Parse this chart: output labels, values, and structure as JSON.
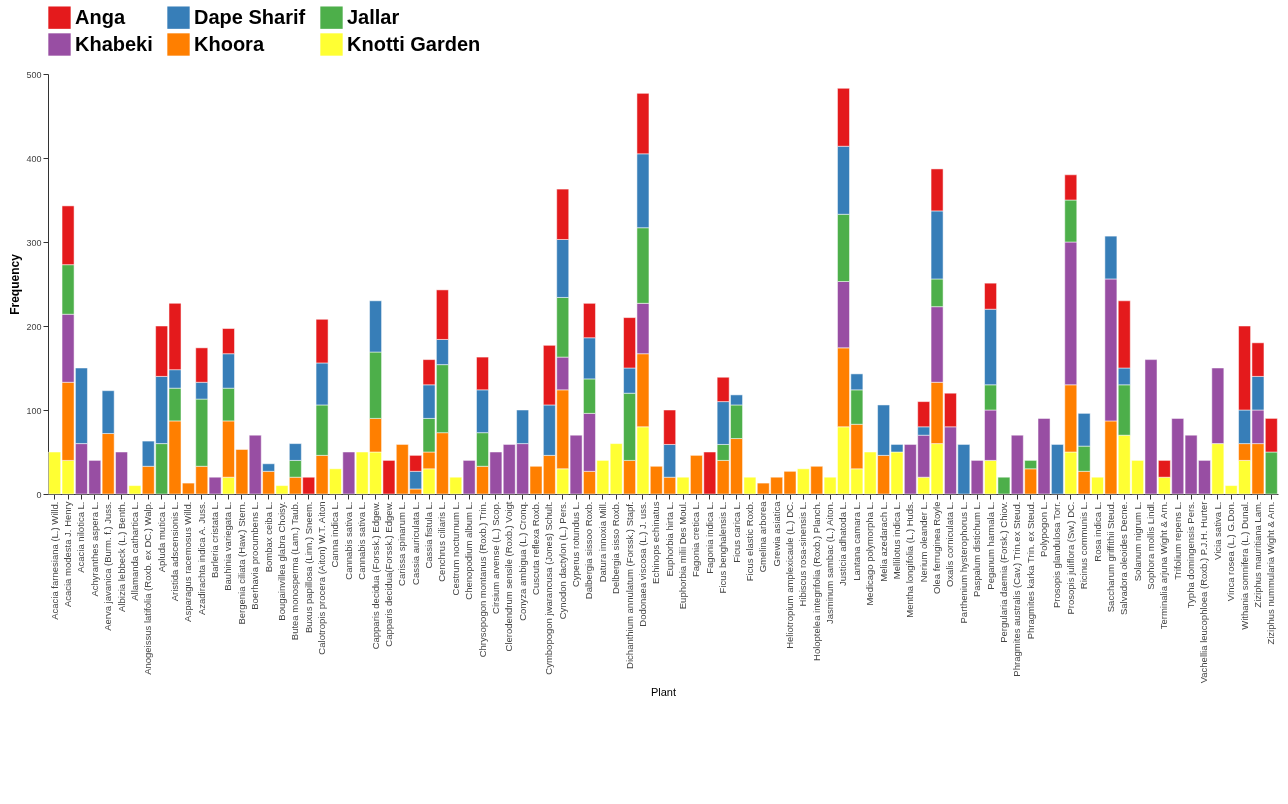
{
  "chart_data": {
    "type": "bar",
    "stacked": true,
    "xlabel": "Plant",
    "ylabel": "Frequency",
    "ylim": [
      0,
      500
    ],
    "yticks": [
      0,
      100,
      200,
      300,
      400,
      500
    ],
    "legend": "top",
    "categories": [
      "Acacia farnesiana (L.) Willd.",
      "Acacia modesta J. Henry",
      "Acacia nilotica L.",
      "Achyranthes aspera L.",
      "Aerva javanica (Burm. f.) Juss.",
      "Albizia lebbeck (L.) Benth.",
      "Allamanda cathartica L.",
      "Anogeissus latifolia (Roxb. ex DC.) Walp.",
      "Apluda mutica L.",
      "Aristida adscensionis L.",
      "Asparagus racemosus Willd.",
      "Azadirachta indica A. Juss.",
      "Barleria cristata L.",
      "Bauhinia variegata L.",
      "Bergenia ciliata (Haw.) Stern.",
      "Boerhavia procumbens L.",
      "Bombax ceiba L.",
      "Bougainvillea glabra Choisy.",
      "Butea monosperma (Lam.) Taub.",
      "Buxus papillosa (Linn.) Sneem.",
      "Calotropis procera (Aiton) W.T. Aiton",
      "Canna indica L.",
      "Cannabis sativa L.",
      "Cannabis sativa L.",
      "Capparis decidua (Forssk.) Edgew.",
      "Capparis decidua(Forssk.) Edgew.",
      "Carissa spinarum L.",
      "Cassia auriculata L.",
      "Cassia fistula L.",
      "Cenchrus ciliaris L.",
      "Cestrum nocturnum L.",
      "Chenopodium album L.",
      "Chrysopogon montanus (Roxb.) Trin.",
      "Cirsium arvense (L.) Scop.",
      "Clerodendrum sensile (Roxb.) Voigt",
      "Conyza ambigua (L.) Cronq.",
      "Cuscuta reflexa Roxb.",
      "Cymbopogon jwarancusa (Jones) Schult.",
      "Cynodon dactylon (L.) Pers.",
      "Cyperus rotundus L.",
      "Dalbergia sissoo Roxb.",
      "Datura innoxia Mill.",
      "Delbergia sisso Roxb.",
      "Dichanthium annulatum (Forssk.) Stapf.",
      "Dodonaea viscosa (L.) J. uss.",
      "Echinops echinatus",
      "Euphorbia hirta L.",
      "Euphorbia milii Des Moul.",
      "Fagonia cretica L.",
      "Fagonia indica L.",
      "Ficus benghalensis L.",
      "Ficus carica L.",
      "Ficus elastic Roxb.",
      "Gmelina arborea",
      "Grewia asiatica",
      "Heliotropium amplexicaule (L.) DC.",
      "Hibiscus rosa-sinensis L.",
      "Holoptelea integrifolia (Roxb.) Planch.",
      "Jasminum sambac (L.) Aiton.",
      "Justicia adhatoda L.",
      "Lantana camara L.",
      "Medicago polymorpha L.",
      "Melia azedarach L.",
      "Mellilotus indica L.",
      "Mentha longifolia (L.) Huds.",
      "Nerium oleander L.",
      "Olea ferruginea Royle",
      "Oxalis corniculata L.",
      "Parthenium hysterophorus L.",
      "Paspalum distichum L.",
      "Peganum harmala L.",
      "Pergularia daemia (Forsk.) Chiov.",
      "Phragmites australis (Cav.) Trin.ex Steud.",
      "Phragmites karka Trin. ex Steud.",
      "Polypogon L.",
      "Prosopis glandulosa Torr.",
      "Prosopis juliflora (Sw.) DC.",
      "Ricinus communis L.",
      "Rosa indica L.",
      "Saccharum griffithii Steud.",
      "Salvadora oleoides Decne.",
      "Solanum nigrum L.",
      "Sophora mollis Lindl.",
      "Terminalia arjuna Wight & Arn.",
      "Trifolium repens L.",
      "Typha domingensis Pers.",
      "Vachellia leucophloea (Roxb.) P.J.H. Hurter",
      "Vicia sativa L.",
      "Vinca rosea (L.) G.Don.",
      "Withania somnifera (L.) Dunal.",
      "Ziziphus mauritiana Lam.",
      "Ziziphus nummularia Wight & Arn."
    ],
    "series": [
      {
        "name": "Knotti Garden",
        "color": "#ffff33",
        "values": [
          50,
          40,
          null,
          null,
          null,
          null,
          10,
          null,
          null,
          null,
          null,
          null,
          null,
          20,
          null,
          null,
          null,
          10,
          null,
          null,
          null,
          30,
          null,
          50,
          50,
          null,
          null,
          null,
          30,
          null,
          20,
          null,
          null,
          null,
          null,
          null,
          null,
          null,
          30,
          null,
          null,
          40,
          60,
          null,
          80,
          null,
          null,
          20,
          null,
          null,
          null,
          null,
          20,
          null,
          null,
          null,
          30,
          null,
          20,
          80,
          30,
          50,
          null,
          50,
          null,
          20,
          60,
          null,
          null,
          null,
          40,
          null,
          null,
          null,
          null,
          null,
          50,
          null,
          20,
          null,
          70,
          40,
          null,
          20,
          null,
          null,
          null,
          60,
          10,
          40,
          null,
          null
        ]
      },
      {
        "name": "Khoora",
        "color": "#ff7f00",
        "values": [
          null,
          93,
          null,
          null,
          72,
          null,
          null,
          33,
          null,
          87,
          13,
          33,
          null,
          67,
          53,
          null,
          27,
          null,
          20,
          null,
          46,
          null,
          null,
          null,
          40,
          null,
          59,
          6,
          20,
          73,
          null,
          null,
          33,
          null,
          null,
          null,
          33,
          46,
          94,
          null,
          27,
          null,
          null,
          40,
          87,
          33,
          20,
          null,
          46,
          null,
          40,
          66,
          null,
          13,
          20,
          27,
          null,
          33,
          null,
          94,
          53,
          null,
          46,
          null,
          null,
          null,
          73,
          null,
          null,
          null,
          null,
          null,
          null,
          30,
          null,
          null,
          80,
          27,
          null,
          87,
          null,
          null,
          null,
          null,
          null,
          null,
          null,
          null,
          null,
          20,
          60,
          null
        ]
      },
      {
        "name": "Khabeki",
        "color": "#984ea3",
        "values": [
          null,
          81,
          60,
          40,
          null,
          50,
          null,
          null,
          null,
          null,
          null,
          null,
          20,
          null,
          null,
          70,
          null,
          null,
          null,
          null,
          null,
          null,
          50,
          null,
          null,
          null,
          null,
          null,
          null,
          null,
          null,
          40,
          null,
          50,
          59,
          60,
          null,
          null,
          39,
          70,
          69,
          null,
          null,
          null,
          60,
          null,
          null,
          null,
          null,
          null,
          null,
          null,
          null,
          null,
          null,
          null,
          null,
          null,
          null,
          79,
          null,
          null,
          null,
          null,
          59,
          50,
          90,
          80,
          null,
          40,
          60,
          null,
          70,
          null,
          90,
          null,
          170,
          null,
          null,
          169,
          null,
          null,
          160,
          null,
          90,
          70,
          40,
          90,
          null,
          null,
          40,
          null
        ]
      },
      {
        "name": "Jallar",
        "color": "#4daf4a",
        "values": [
          null,
          59,
          null,
          null,
          null,
          null,
          null,
          null,
          60,
          39,
          null,
          80,
          null,
          39,
          null,
          null,
          null,
          null,
          20,
          null,
          60,
          null,
          null,
          null,
          79,
          null,
          null,
          null,
          40,
          81,
          null,
          null,
          40,
          null,
          null,
          null,
          null,
          null,
          71,
          null,
          41,
          null,
          null,
          80,
          90,
          null,
          null,
          null,
          null,
          null,
          19,
          40,
          null,
          null,
          null,
          null,
          null,
          null,
          null,
          80,
          41,
          null,
          null,
          null,
          null,
          null,
          33,
          null,
          null,
          null,
          30,
          20,
          null,
          10,
          null,
          null,
          50,
          30,
          null,
          null,
          60,
          null,
          null,
          null,
          null,
          null,
          null,
          null,
          null,
          null,
          null,
          50
        ]
      },
      {
        "name": "Dape Sharif",
        "color": "#377eb8",
        "values": [
          null,
          null,
          90,
          null,
          51,
          null,
          null,
          30,
          80,
          22,
          null,
          20,
          null,
          41,
          null,
          null,
          9,
          null,
          20,
          null,
          50,
          null,
          null,
          null,
          61,
          null,
          null,
          21,
          40,
          30,
          null,
          null,
          51,
          null,
          null,
          40,
          null,
          60,
          69,
          null,
          49,
          null,
          null,
          30,
          88,
          null,
          39,
          null,
          null,
          null,
          51,
          12,
          null,
          null,
          null,
          null,
          null,
          null,
          null,
          81,
          19,
          null,
          60,
          9,
          null,
          10,
          81,
          null,
          59,
          null,
          90,
          null,
          null,
          null,
          null,
          59,
          null,
          39,
          null,
          51,
          20,
          null,
          null,
          null,
          null,
          null,
          null,
          null,
          null,
          40,
          40,
          null
        ]
      },
      {
        "name": "Anga",
        "color": "#e41a1c",
        "values": [
          null,
          70,
          null,
          null,
          null,
          null,
          null,
          null,
          60,
          79,
          null,
          41,
          null,
          30,
          null,
          null,
          null,
          null,
          null,
          20,
          52,
          null,
          null,
          null,
          null,
          40,
          null,
          19,
          30,
          59,
          null,
          null,
          39,
          null,
          null,
          null,
          null,
          71,
          60,
          null,
          41,
          null,
          null,
          60,
          72,
          null,
          41,
          null,
          null,
          50,
          29,
          null,
          null,
          null,
          null,
          null,
          null,
          null,
          null,
          69,
          null,
          null,
          null,
          null,
          null,
          30,
          50,
          40,
          null,
          null,
          31,
          null,
          null,
          null,
          null,
          null,
          30,
          null,
          null,
          null,
          80,
          null,
          null,
          20,
          null,
          null,
          null,
          null,
          null,
          100,
          40,
          40
        ]
      }
    ]
  }
}
